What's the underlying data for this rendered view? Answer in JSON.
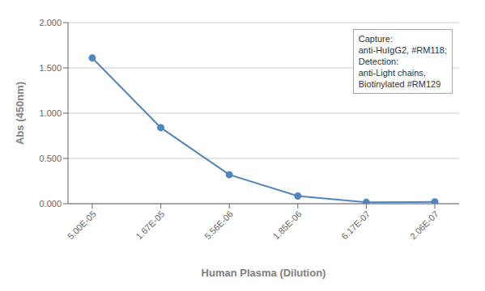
{
  "chart_data": {
    "type": "line",
    "categories": [
      "5.00E-05",
      "1.67E-05",
      "5.56E-06",
      "1.85E-06",
      "6.17E-07",
      "2.06E-07"
    ],
    "values": [
      1.61,
      0.84,
      0.32,
      0.085,
      0.015,
      0.02
    ],
    "xlabel": "Human Plasma (Dilution)",
    "ylabel": "Abs (450nm)",
    "ylim": [
      0.0,
      2.0
    ],
    "yticks": [
      {
        "value": 0.0,
        "label": "0.000"
      },
      {
        "value": 0.5,
        "label": "0.500"
      },
      {
        "value": 1.0,
        "label": "1.000"
      },
      {
        "value": 1.5,
        "label": "1.500"
      },
      {
        "value": 2.0,
        "label": "2.000"
      }
    ],
    "color": "#4f86c0",
    "marker": "o",
    "grid": true,
    "annotations": [
      "Capture:\nanti-HuIgG2, #RM118;\nDetection:\nanti-Light chains,\nBiotinylated #RM129"
    ]
  }
}
